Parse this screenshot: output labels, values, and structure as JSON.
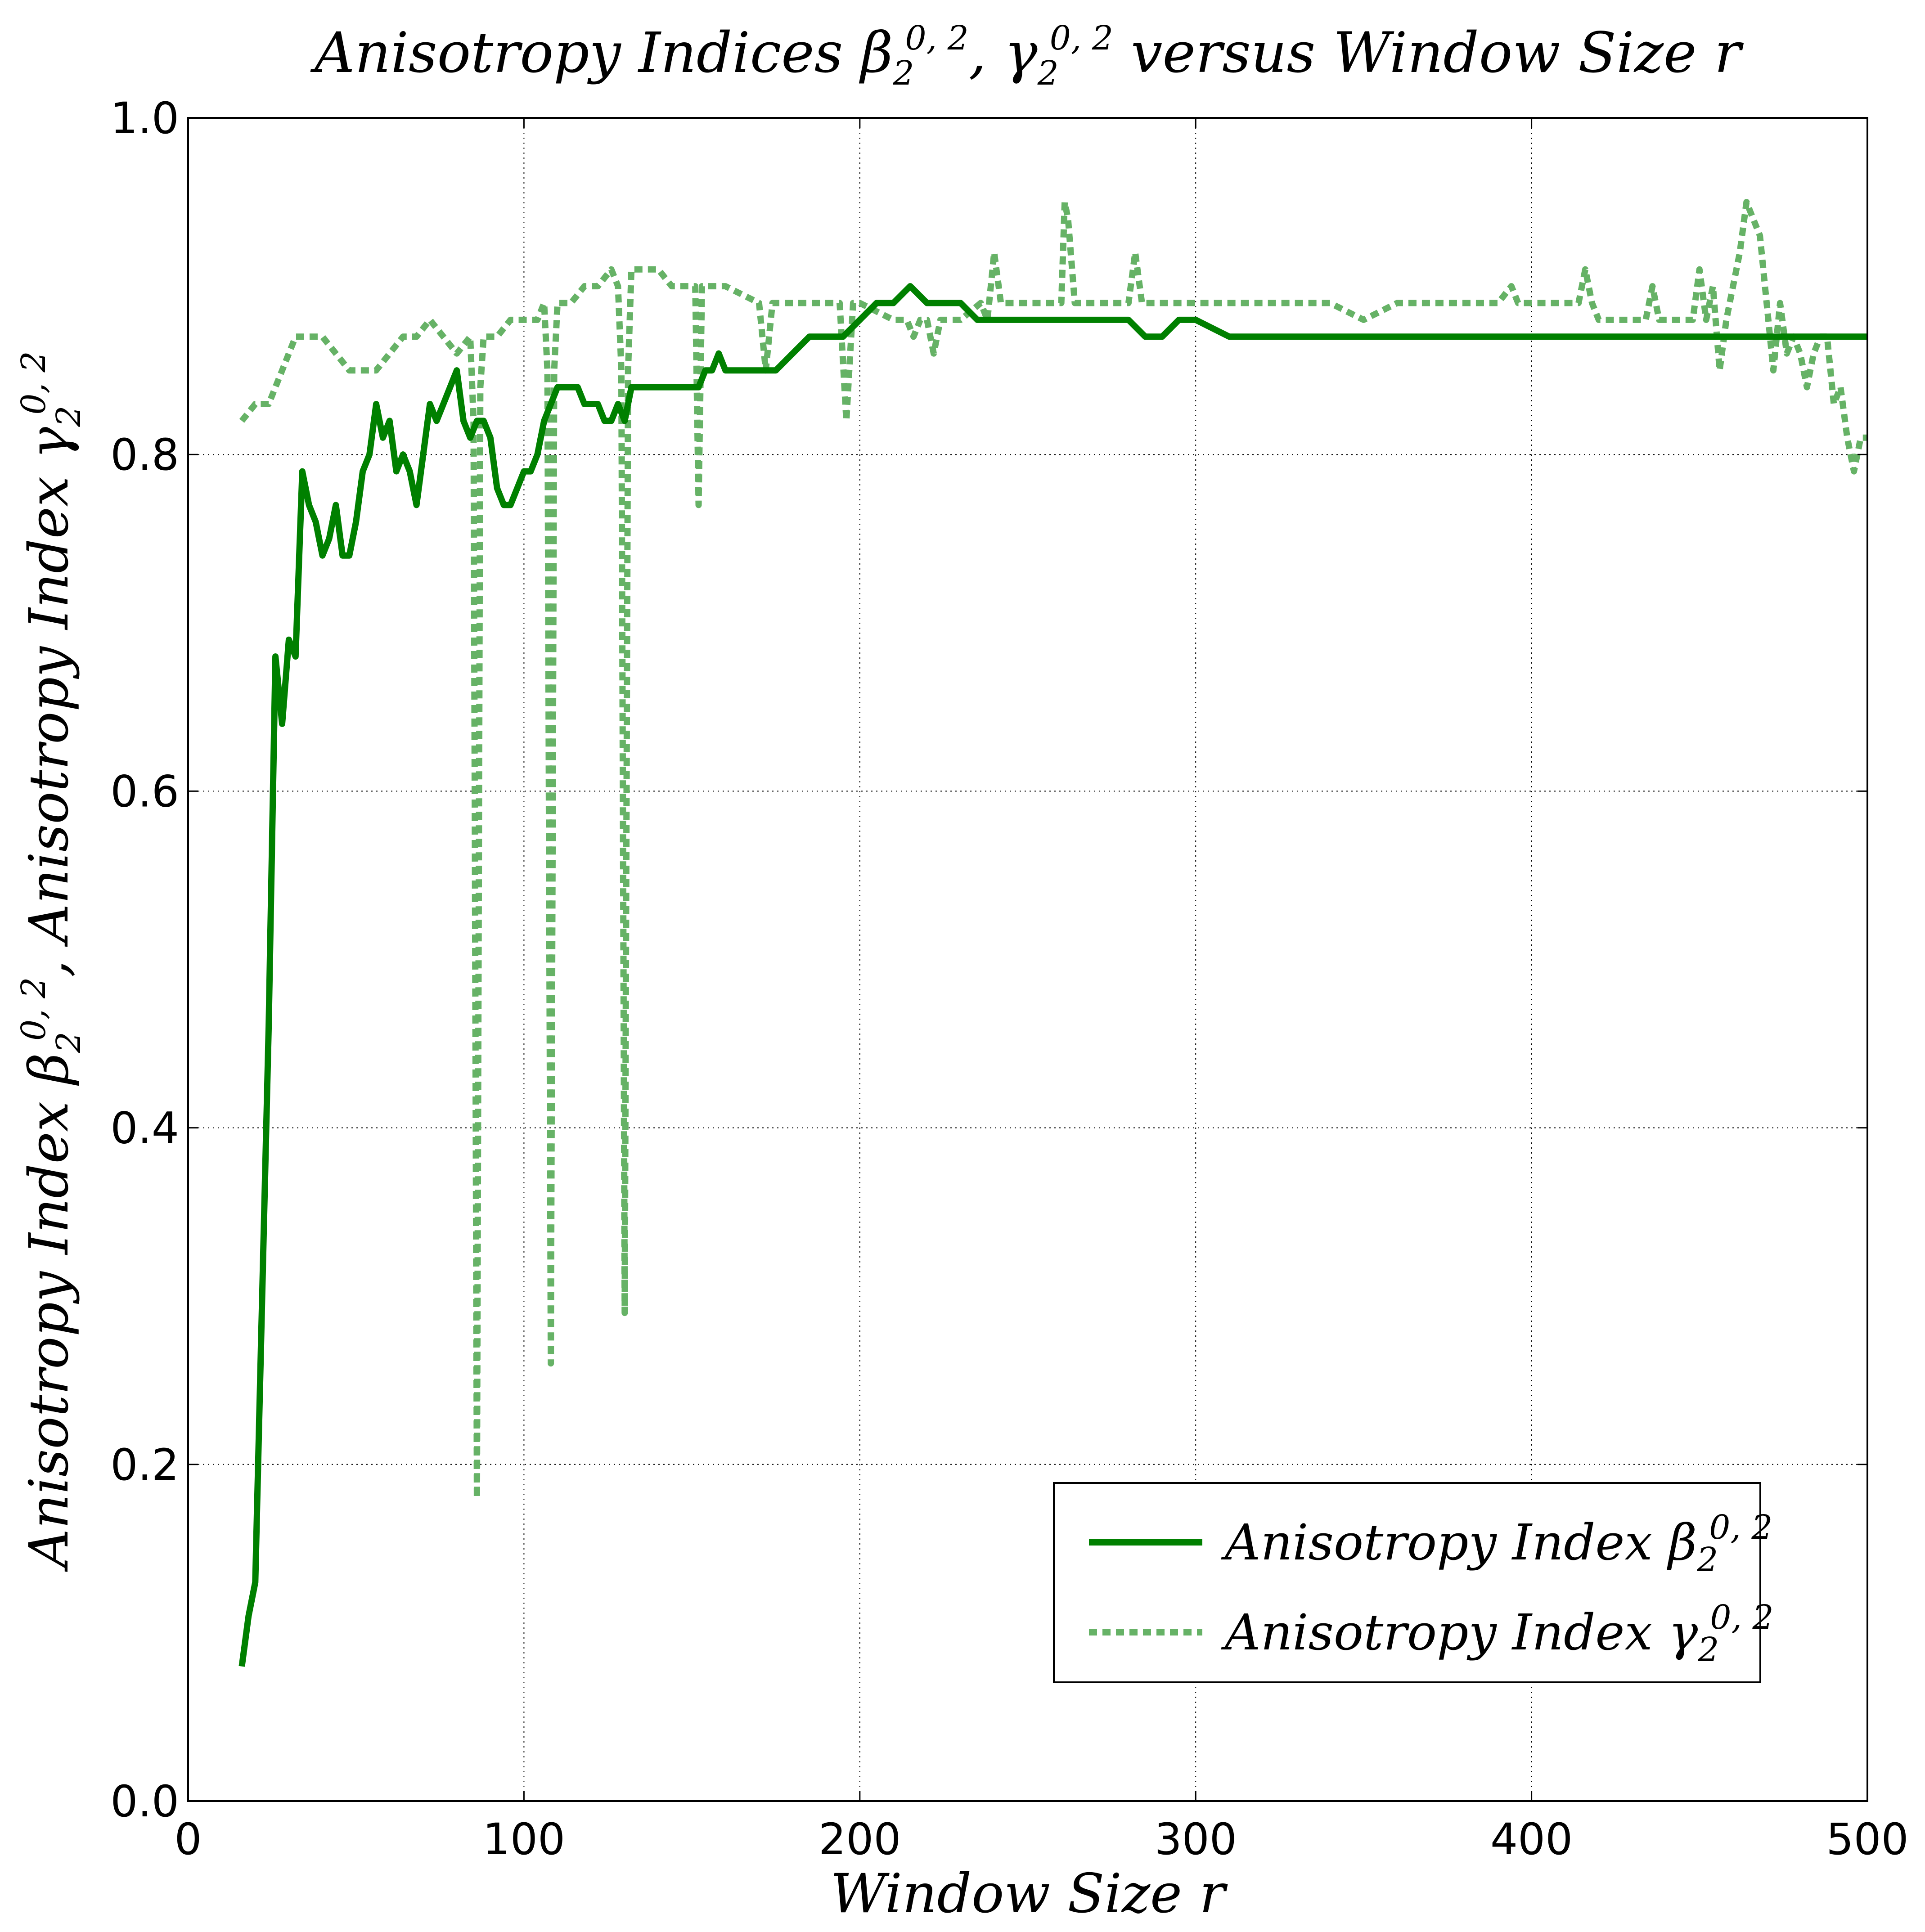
{
  "chart_data": {
    "type": "line",
    "title": {
      "prefix": "Anisotropy Indices ",
      "beta": "β",
      "sub": "2",
      "sup": "0, 2",
      "sep": ", ",
      "gamma": "γ",
      "suffix": " versus Window Size r"
    },
    "xlabel": "Window Size r",
    "ylabel": {
      "prefix": "Anisotropy Index ",
      "beta": "β",
      "sub": "2",
      "sup": "0, 2",
      "sep": ",  Anisotropy Index ",
      "gamma": "γ"
    },
    "xlim": [
      0,
      500
    ],
    "ylim": [
      0.0,
      1.0
    ],
    "x_ticks": [
      "0",
      "100",
      "200",
      "300",
      "400",
      "500"
    ],
    "y_ticks": [
      "0.0",
      "0.2",
      "0.4",
      "0.6",
      "0.8",
      "1.0"
    ],
    "grid": true,
    "legend": {
      "position": "lower-right",
      "entries": [
        {
          "base": "Anisotropy Index ",
          "sym": "β",
          "sub": "2",
          "sup": "0, 2",
          "style": "solid"
        },
        {
          "base": "Anisotropy Index ",
          "sym": "γ",
          "sub": "2",
          "sup": "0, 2",
          "style": "dashed"
        }
      ]
    },
    "colors": {
      "beta": "#008000",
      "gamma": "#66b266"
    },
    "series": [
      {
        "key": "beta",
        "style": "solid",
        "points": [
          [
            16,
            0.08
          ],
          [
            18,
            0.11
          ],
          [
            20,
            0.13
          ],
          [
            24,
            0.46
          ],
          [
            26,
            0.68
          ],
          [
            28,
            0.64
          ],
          [
            30,
            0.69
          ],
          [
            32,
            0.68
          ],
          [
            34,
            0.79
          ],
          [
            36,
            0.77
          ],
          [
            38,
            0.76
          ],
          [
            40,
            0.74
          ],
          [
            42,
            0.75
          ],
          [
            44,
            0.77
          ],
          [
            46,
            0.74
          ],
          [
            48,
            0.74
          ],
          [
            50,
            0.76
          ],
          [
            52,
            0.79
          ],
          [
            54,
            0.8
          ],
          [
            56,
            0.83
          ],
          [
            58,
            0.81
          ],
          [
            60,
            0.82
          ],
          [
            62,
            0.79
          ],
          [
            64,
            0.8
          ],
          [
            66,
            0.79
          ],
          [
            68,
            0.77
          ],
          [
            70,
            0.8
          ],
          [
            72,
            0.83
          ],
          [
            74,
            0.82
          ],
          [
            76,
            0.83
          ],
          [
            78,
            0.84
          ],
          [
            80,
            0.85
          ],
          [
            82,
            0.82
          ],
          [
            84,
            0.81
          ],
          [
            86,
            0.82
          ],
          [
            88,
            0.82
          ],
          [
            90,
            0.81
          ],
          [
            92,
            0.78
          ],
          [
            94,
            0.77
          ],
          [
            96,
            0.77
          ],
          [
            98,
            0.78
          ],
          [
            100,
            0.79
          ],
          [
            102,
            0.79
          ],
          [
            104,
            0.8
          ],
          [
            106,
            0.82
          ],
          [
            108,
            0.83
          ],
          [
            110,
            0.84
          ],
          [
            112,
            0.84
          ],
          [
            114,
            0.84
          ],
          [
            116,
            0.84
          ],
          [
            118,
            0.83
          ],
          [
            120,
            0.83
          ],
          [
            122,
            0.83
          ],
          [
            124,
            0.82
          ],
          [
            126,
            0.82
          ],
          [
            128,
            0.83
          ],
          [
            130,
            0.82
          ],
          [
            132,
            0.84
          ],
          [
            134,
            0.84
          ],
          [
            136,
            0.84
          ],
          [
            138,
            0.84
          ],
          [
            140,
            0.84
          ],
          [
            142,
            0.84
          ],
          [
            144,
            0.84
          ],
          [
            146,
            0.84
          ],
          [
            148,
            0.84
          ],
          [
            150,
            0.84
          ],
          [
            152,
            0.84
          ],
          [
            154,
            0.85
          ],
          [
            156,
            0.85
          ],
          [
            158,
            0.86
          ],
          [
            160,
            0.85
          ],
          [
            165,
            0.85
          ],
          [
            170,
            0.85
          ],
          [
            175,
            0.85
          ],
          [
            180,
            0.86
          ],
          [
            185,
            0.87
          ],
          [
            190,
            0.87
          ],
          [
            195,
            0.87
          ],
          [
            200,
            0.88
          ],
          [
            205,
            0.89
          ],
          [
            210,
            0.89
          ],
          [
            215,
            0.9
          ],
          [
            220,
            0.89
          ],
          [
            225,
            0.89
          ],
          [
            230,
            0.89
          ],
          [
            235,
            0.88
          ],
          [
            240,
            0.88
          ],
          [
            245,
            0.88
          ],
          [
            250,
            0.88
          ],
          [
            255,
            0.88
          ],
          [
            260,
            0.88
          ],
          [
            265,
            0.88
          ],
          [
            270,
            0.88
          ],
          [
            275,
            0.88
          ],
          [
            280,
            0.88
          ],
          [
            285,
            0.87
          ],
          [
            290,
            0.87
          ],
          [
            295,
            0.88
          ],
          [
            300,
            0.88
          ],
          [
            310,
            0.87
          ],
          [
            320,
            0.87
          ],
          [
            330,
            0.87
          ],
          [
            340,
            0.87
          ],
          [
            350,
            0.87
          ],
          [
            360,
            0.87
          ],
          [
            370,
            0.87
          ],
          [
            380,
            0.87
          ],
          [
            390,
            0.87
          ],
          [
            400,
            0.87
          ],
          [
            410,
            0.87
          ],
          [
            420,
            0.87
          ],
          [
            430,
            0.87
          ],
          [
            440,
            0.87
          ],
          [
            450,
            0.87
          ],
          [
            460,
            0.87
          ],
          [
            470,
            0.87
          ],
          [
            480,
            0.87
          ],
          [
            490,
            0.87
          ],
          [
            500,
            0.87
          ]
        ]
      },
      {
        "key": "gamma",
        "style": "dashed",
        "points": [
          [
            16,
            0.82
          ],
          [
            20,
            0.83
          ],
          [
            24,
            0.83
          ],
          [
            28,
            0.85
          ],
          [
            32,
            0.87
          ],
          [
            36,
            0.87
          ],
          [
            40,
            0.87
          ],
          [
            44,
            0.86
          ],
          [
            48,
            0.85
          ],
          [
            52,
            0.85
          ],
          [
            56,
            0.85
          ],
          [
            60,
            0.86
          ],
          [
            64,
            0.87
          ],
          [
            68,
            0.87
          ],
          [
            72,
            0.88
          ],
          [
            76,
            0.87
          ],
          [
            80,
            0.86
          ],
          [
            84,
            0.87
          ],
          [
            85,
            0.82
          ],
          [
            86,
            0.18
          ],
          [
            87,
            0.84
          ],
          [
            88,
            0.87
          ],
          [
            92,
            0.87
          ],
          [
            96,
            0.88
          ],
          [
            100,
            0.88
          ],
          [
            104,
            0.88
          ],
          [
            106,
            0.89
          ],
          [
            107,
            0.85
          ],
          [
            108,
            0.26
          ],
          [
            109,
            0.85
          ],
          [
            110,
            0.89
          ],
          [
            114,
            0.89
          ],
          [
            118,
            0.9
          ],
          [
            122,
            0.9
          ],
          [
            126,
            0.91
          ],
          [
            128,
            0.9
          ],
          [
            129,
            0.85
          ],
          [
            130,
            0.29
          ],
          [
            131,
            0.85
          ],
          [
            132,
            0.91
          ],
          [
            136,
            0.91
          ],
          [
            140,
            0.91
          ],
          [
            144,
            0.9
          ],
          [
            148,
            0.9
          ],
          [
            151,
            0.9
          ],
          [
            152,
            0.77
          ],
          [
            153,
            0.9
          ],
          [
            156,
            0.9
          ],
          [
            160,
            0.9
          ],
          [
            170,
            0.89
          ],
          [
            172,
            0.85
          ],
          [
            174,
            0.89
          ],
          [
            180,
            0.89
          ],
          [
            190,
            0.89
          ],
          [
            194,
            0.89
          ],
          [
            196,
            0.82
          ],
          [
            198,
            0.89
          ],
          [
            200,
            0.89
          ],
          [
            210,
            0.88
          ],
          [
            214,
            0.88
          ],
          [
            216,
            0.87
          ],
          [
            218,
            0.88
          ],
          [
            220,
            0.88
          ],
          [
            222,
            0.86
          ],
          [
            224,
            0.88
          ],
          [
            230,
            0.88
          ],
          [
            236,
            0.89
          ],
          [
            238,
            0.88
          ],
          [
            240,
            0.92
          ],
          [
            242,
            0.89
          ],
          [
            250,
            0.89
          ],
          [
            258,
            0.89
          ],
          [
            260,
            0.89
          ],
          [
            261,
            0.95
          ],
          [
            262,
            0.94
          ],
          [
            264,
            0.89
          ],
          [
            270,
            0.89
          ],
          [
            276,
            0.89
          ],
          [
            280,
            0.89
          ],
          [
            282,
            0.92
          ],
          [
            284,
            0.89
          ],
          [
            290,
            0.89
          ],
          [
            300,
            0.89
          ],
          [
            310,
            0.89
          ],
          [
            320,
            0.89
          ],
          [
            330,
            0.89
          ],
          [
            340,
            0.89
          ],
          [
            350,
            0.88
          ],
          [
            360,
            0.89
          ],
          [
            370,
            0.89
          ],
          [
            380,
            0.89
          ],
          [
            390,
            0.89
          ],
          [
            394,
            0.9
          ],
          [
            396,
            0.89
          ],
          [
            400,
            0.89
          ],
          [
            410,
            0.89
          ],
          [
            414,
            0.89
          ],
          [
            416,
            0.91
          ],
          [
            418,
            0.89
          ],
          [
            420,
            0.88
          ],
          [
            430,
            0.88
          ],
          [
            434,
            0.88
          ],
          [
            436,
            0.9
          ],
          [
            438,
            0.88
          ],
          [
            440,
            0.88
          ],
          [
            446,
            0.88
          ],
          [
            448,
            0.88
          ],
          [
            450,
            0.91
          ],
          [
            452,
            0.88
          ],
          [
            454,
            0.9
          ],
          [
            456,
            0.85
          ],
          [
            458,
            0.88
          ],
          [
            460,
            0.9
          ],
          [
            462,
            0.92
          ],
          [
            464,
            0.95
          ],
          [
            466,
            0.94
          ],
          [
            468,
            0.93
          ],
          [
            470,
            0.89
          ],
          [
            472,
            0.85
          ],
          [
            474,
            0.89
          ],
          [
            476,
            0.86
          ],
          [
            478,
            0.87
          ],
          [
            480,
            0.86
          ],
          [
            482,
            0.84
          ],
          [
            484,
            0.86
          ],
          [
            486,
            0.87
          ],
          [
            488,
            0.87
          ],
          [
            490,
            0.83
          ],
          [
            492,
            0.84
          ],
          [
            494,
            0.81
          ],
          [
            496,
            0.79
          ],
          [
            498,
            0.81
          ],
          [
            500,
            0.81
          ]
        ]
      }
    ]
  }
}
